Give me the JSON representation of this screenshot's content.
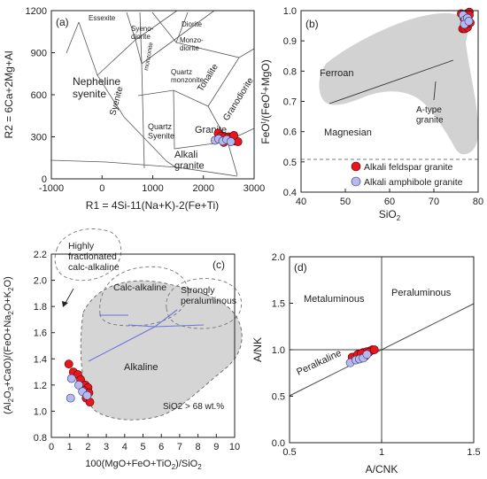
{
  "legend": {
    "feldspar_label": "Alkali feldspar granite",
    "amphibole_label": "Alkali amphibole granite",
    "feldspar_color": "#e8161d",
    "amphibole_color": "#b6b9f0"
  },
  "chart_data": [
    {
      "type": "scatter",
      "panel": "(a)",
      "xlabel": "R1 = 4Si-11(Na+K)-2(Fe+Ti)",
      "ylabel": "R2 = 6Ca+2Mg+Al",
      "xlim": [
        -1000,
        3000
      ],
      "ylim": [
        0,
        1200
      ],
      "xticks": [
        "-1000",
        "0",
        "1000",
        "2000",
        "3000"
      ],
      "yticks": [
        "0",
        "300",
        "600",
        "900",
        "1200"
      ],
      "fields": [
        {
          "label": "Essexite",
          "lines": [
            "Essexite"
          ]
        },
        {
          "label": "Syeno-diorite",
          "lines": [
            "Syeno-",
            "diorite"
          ]
        },
        {
          "label": "Diorite",
          "lines": [
            "Diorite"
          ]
        },
        {
          "label": "Monzo-diorite",
          "lines": [
            "Monzo-",
            "diorite"
          ]
        },
        {
          "label": "monzonite",
          "lines": [
            "monzonite"
          ]
        },
        {
          "label": "Tonalite",
          "lines": [
            "Tonalite"
          ]
        },
        {
          "label": "Quartz monzonite",
          "lines": [
            "Quartz",
            "monzonite"
          ]
        },
        {
          "label": "Nepheline syenite",
          "lines": [
            "Nepheline",
            "syenite"
          ]
        },
        {
          "label": "Syenite",
          "lines": [
            "Syenite"
          ]
        },
        {
          "label": "Granodiorite",
          "lines": [
            "Granodiorite"
          ]
        },
        {
          "label": "Quartz Syenite",
          "lines": [
            "Quartz",
            "Syenite"
          ]
        },
        {
          "label": "Granite",
          "lines": [
            "Granite"
          ]
        },
        {
          "label": "Alkali granite",
          "lines": [
            "Alkali",
            "granite"
          ]
        }
      ],
      "series": [
        {
          "name": "Alkali feldspar granite",
          "points": [
            [
              2290,
              325
            ],
            [
              2350,
              305
            ],
            [
              2420,
              300
            ],
            [
              2500,
              300
            ],
            [
              2560,
              285
            ],
            [
              2620,
              270
            ],
            [
              2680,
              265
            ],
            [
              2400,
              260
            ],
            [
              2520,
              290
            ],
            [
              2600,
              310
            ]
          ]
        },
        {
          "name": "Alkali amphibole granite",
          "points": [
            [
              2230,
              275
            ],
            [
              2300,
              285
            ],
            [
              2380,
              270
            ],
            [
              2460,
              280
            ],
            [
              2540,
              265
            ]
          ]
        }
      ]
    },
    {
      "type": "scatter",
      "panel": "(b)",
      "xlabel": "SiO2",
      "ylabel": "FeOt/(FeOt+MgO)",
      "xlim": [
        40,
        80
      ],
      "ylim": [
        0.4,
        1.0
      ],
      "xticks": [
        "40",
        "50",
        "60",
        "70",
        "80"
      ],
      "yticks": [
        "0.4",
        "0.5",
        "0.6",
        "0.7",
        "0.8",
        "0.9",
        "1.0"
      ],
      "fields": [
        {
          "label": "Ferroan",
          "lines": [
            "Ferroan"
          ]
        },
        {
          "label": "Magnesian",
          "lines": [
            "Magnesian"
          ]
        },
        {
          "label": "A-type granite",
          "lines": [
            "A-type",
            "granite"
          ]
        }
      ],
      "series": [
        {
          "name": "Alkali feldspar granite",
          "points": [
            [
              76.2,
              0.99
            ],
            [
              76.8,
              0.975
            ],
            [
              77.4,
              0.99
            ],
            [
              78.0,
              0.995
            ],
            [
              76.5,
              0.94
            ],
            [
              77.0,
              0.94
            ],
            [
              77.6,
              0.945
            ],
            [
              78.2,
              0.96
            ],
            [
              77.2,
              0.955
            ],
            [
              78.0,
              0.985
            ]
          ]
        },
        {
          "name": "Alkali amphibole granite",
          "points": [
            [
              76.6,
              0.985
            ],
            [
              77.1,
              0.97
            ],
            [
              77.6,
              0.975
            ],
            [
              76.9,
              0.955
            ],
            [
              77.9,
              0.965
            ]
          ]
        }
      ]
    },
    {
      "type": "scatter",
      "panel": "(c)",
      "xlabel": "100(MgO+FeO+TiO2)/SiO2",
      "ylabel": "(Al2O3+CaO)/(FeO+Na2O+K2O)",
      "xlim": [
        0,
        10
      ],
      "ylim": [
        0.8,
        2.2
      ],
      "xticks": [
        "0",
        "1",
        "2",
        "3",
        "4",
        "5",
        "6",
        "7",
        "8",
        "9",
        "10"
      ],
      "yticks": [
        "0.8",
        "1.0",
        "1.2",
        "1.4",
        "1.6",
        "1.8",
        "2.0",
        "2.2"
      ],
      "annotation": "SiO2 > 68 wt.%",
      "fields": [
        {
          "label": "Highly fractionated calc-alkaline",
          "lines": [
            "Highly",
            "fractionated",
            "calc-alkaline"
          ]
        },
        {
          "label": "Calc-alkaline",
          "lines": [
            "Calc-alkaline"
          ]
        },
        {
          "label": "Strongly peraluminous",
          "lines": [
            "Strongly",
            "peraluminous"
          ]
        },
        {
          "label": "Alkaline",
          "lines": [
            "Alkaline"
          ]
        }
      ],
      "series": [
        {
          "name": "Alkali feldspar granite",
          "points": [
            [
              0.95,
              1.36
            ],
            [
              1.2,
              1.3
            ],
            [
              1.45,
              1.28
            ],
            [
              1.6,
              1.24
            ],
            [
              1.85,
              1.2
            ],
            [
              2.0,
              1.18
            ],
            [
              1.75,
              1.16
            ],
            [
              2.05,
              1.14
            ],
            [
              1.9,
              1.1
            ],
            [
              2.1,
              1.07
            ]
          ]
        },
        {
          "name": "Alkali amphibole granite",
          "points": [
            [
              1.1,
              1.25
            ],
            [
              1.5,
              1.2
            ],
            [
              1.7,
              1.15
            ],
            [
              1.95,
              1.12
            ],
            [
              1.05,
              1.1
            ]
          ]
        }
      ]
    },
    {
      "type": "scatter",
      "panel": "(d)",
      "xlabel": "A/CNK",
      "ylabel": "A/NK",
      "xlim": [
        0.5,
        1.5
      ],
      "ylim": [
        0.0,
        2.0
      ],
      "xticks": [
        "0.5",
        "1",
        "1.5"
      ],
      "yticks": [
        "0.0",
        "0.5",
        "1.0",
        "1.5",
        "2.0"
      ],
      "fields": [
        {
          "label": "Metaluminous",
          "lines": [
            "Metaluminous"
          ]
        },
        {
          "label": "Peraluminous",
          "lines": [
            "Peraluminous"
          ]
        },
        {
          "label": "Peralkaline",
          "lines": [
            "Peralkaline"
          ]
        }
      ],
      "series": [
        {
          "name": "Alkali feldspar granite",
          "points": [
            [
              0.84,
              0.92
            ],
            [
              0.87,
              0.95
            ],
            [
              0.9,
              0.97
            ],
            [
              0.92,
              0.98
            ],
            [
              0.94,
              0.99
            ],
            [
              0.95,
              1.0
            ],
            [
              0.91,
              0.93
            ],
            [
              0.89,
              0.96
            ],
            [
              0.93,
              0.97
            ],
            [
              0.96,
              1.0
            ]
          ]
        },
        {
          "name": "Alkali amphibole granite",
          "points": [
            [
              0.83,
              0.86
            ],
            [
              0.86,
              0.89
            ],
            [
              0.88,
              0.9
            ],
            [
              0.9,
              0.91
            ],
            [
              0.92,
              0.95
            ]
          ]
        }
      ]
    }
  ]
}
